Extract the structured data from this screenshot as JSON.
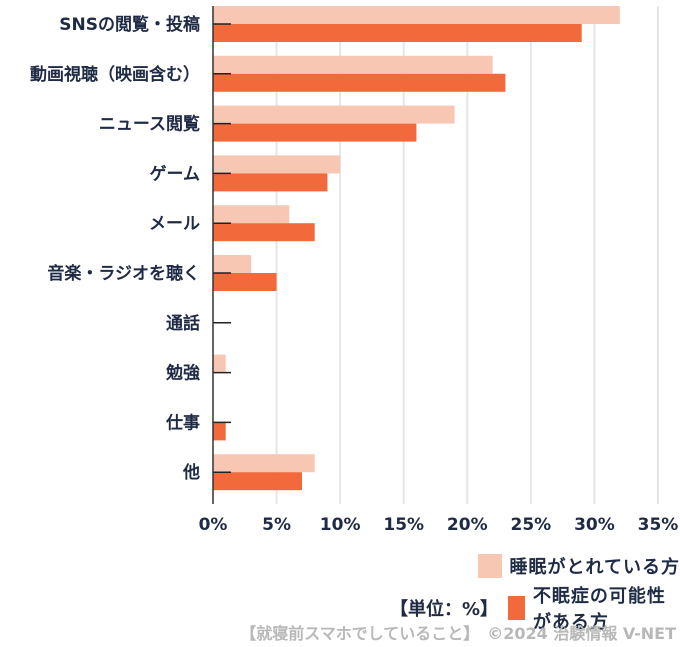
{
  "chart_data": {
    "type": "bar",
    "orientation": "horizontal",
    "categories": [
      "SNSの閲覧・投稿",
      "動画視聴（映画含む）",
      "ニュース閲覧",
      "ゲーム",
      "メール",
      "音楽・ラジオを聴く",
      "通話",
      "勉強",
      "仕事",
      "他"
    ],
    "series": [
      {
        "name": "睡眠がとれている方",
        "color": "#f8c7b4",
        "values": [
          32,
          22,
          19,
          10,
          6,
          3,
          0,
          1,
          0,
          8
        ]
      },
      {
        "name": "不眠症の可能性がある方",
        "color": "#f26a3c",
        "values": [
          29,
          23,
          16,
          9,
          8,
          5,
          0,
          0,
          1,
          7
        ]
      }
    ],
    "x_ticks": [
      "0%",
      "5%",
      "10%",
      "15%",
      "20%",
      "25%",
      "30%",
      "35%"
    ],
    "xlim": [
      0,
      35
    ],
    "grid": true,
    "legend_position": "bottom-right",
    "unit_label": "【単位：%】",
    "footer": "【就寝前スマホでしていること】　©2024 治験情報 V-NET"
  }
}
